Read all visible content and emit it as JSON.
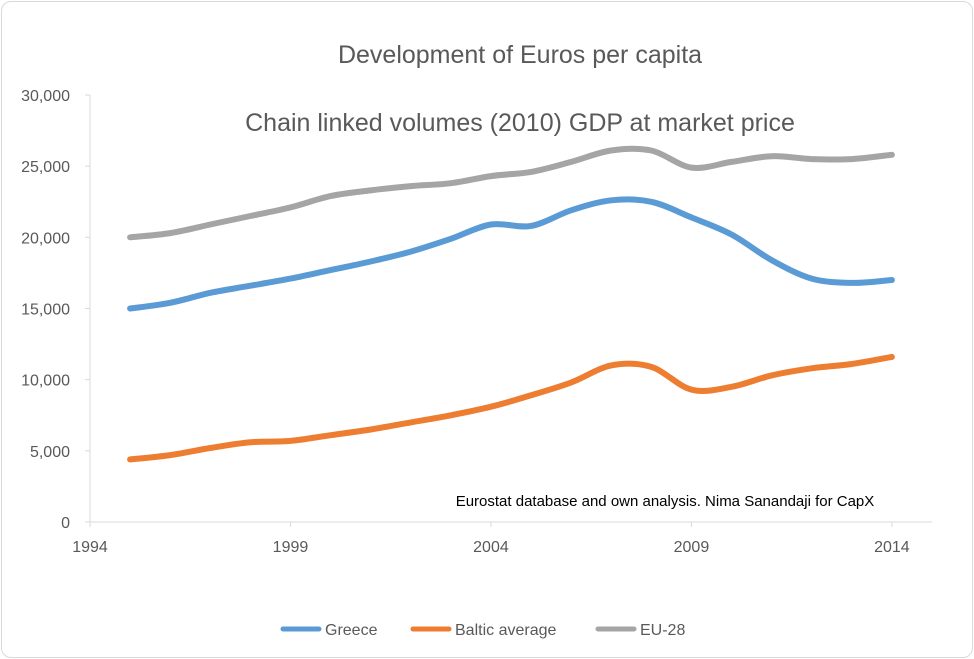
{
  "chart_data": {
    "type": "line",
    "title": "Development of Euros per capita",
    "subtitle": "Chain linked volumes (2010) GDP at market price",
    "annotation": "Eurostat database and own analysis. Nima Sanandaji for CapX",
    "xlabel": "",
    "ylabel": "",
    "xlim": [
      1994,
      2015
    ],
    "ylim": [
      0,
      30000
    ],
    "x_ticks": [
      "1994",
      "1999",
      "2004",
      "2009",
      "2014"
    ],
    "y_ticks": [
      "0",
      "5,000",
      "10,000",
      "15,000",
      "20,000",
      "25,000",
      "30,000"
    ],
    "grid": false,
    "legend_position": "bottom",
    "x": [
      1995,
      1996,
      1997,
      1998,
      1999,
      2000,
      2001,
      2002,
      2003,
      2004,
      2005,
      2006,
      2007,
      2008,
      2009,
      2010,
      2011,
      2012,
      2013,
      2014
    ],
    "series": [
      {
        "name": "Greece",
        "color": "#5b9bd5",
        "values": [
          15000,
          15400,
          16100,
          16600,
          17100,
          17700,
          18300,
          19000,
          19900,
          20900,
          20800,
          21900,
          22600,
          22500,
          21400,
          20200,
          18400,
          17100,
          16800,
          17000
        ]
      },
      {
        "name": "Baltic average",
        "color": "#ed7d31",
        "values": [
          4400,
          4700,
          5200,
          5600,
          5700,
          6100,
          6500,
          7000,
          7500,
          8100,
          8900,
          9800,
          11000,
          10900,
          9300,
          9500,
          10300,
          10800,
          11100,
          11600
        ]
      },
      {
        "name": "EU-28",
        "color": "#a5a5a5",
        "values": [
          20000,
          20300,
          20900,
          21500,
          22100,
          22900,
          23300,
          23600,
          23800,
          24300,
          24600,
          25300,
          26100,
          26100,
          24900,
          25300,
          25700,
          25500,
          25500,
          25800
        ]
      }
    ]
  }
}
